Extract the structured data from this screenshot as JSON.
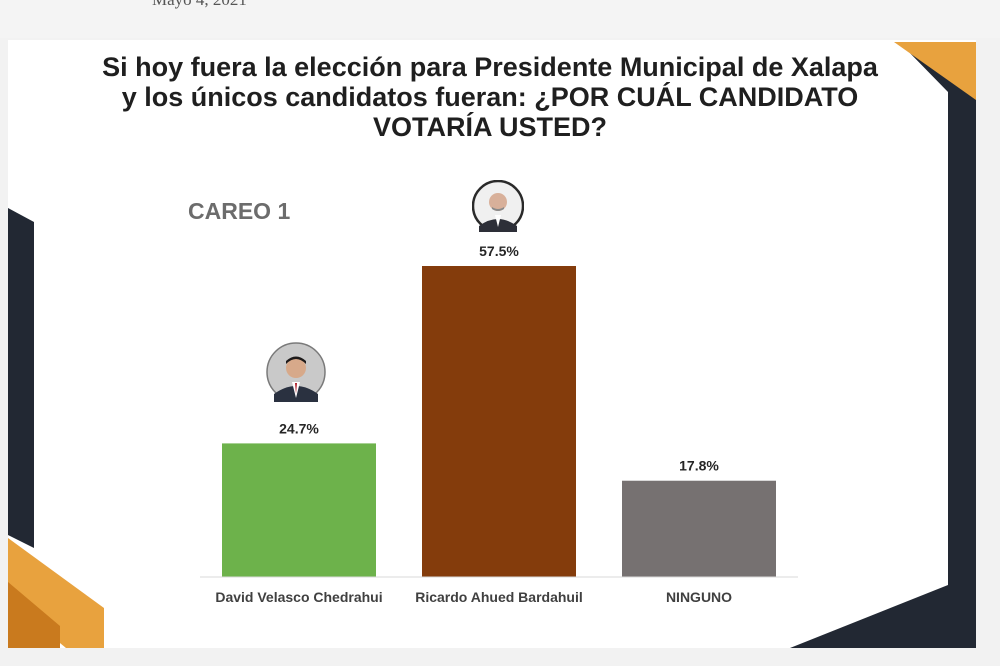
{
  "header": {
    "date_fragment": "Mayo 4, 2021"
  },
  "slide": {
    "title_lines": [
      "Si hoy fuera la elección para Presidente Municipal de Xalapa",
      "y los únicos candidatos fueran:  ¿POR CUÁL CANDIDATO",
      "VOTARÍA USTED?"
    ],
    "subtitle": "CAREO 1"
  },
  "colors": {
    "green": "#6db24b",
    "brown": "#843c0c",
    "gray": "#767171",
    "deco_dark": "#222833",
    "deco_orange": "#e8a23e",
    "deco_orange_dark": "#c97a1e"
  },
  "chart_data": {
    "type": "bar",
    "title": "Si hoy fuera la elección para Presidente Municipal de Xalapa y los únicos candidatos fueran:  ¿POR CUÁL CANDIDATO VOTARÍA USTED?",
    "subtitle": "CAREO 1",
    "categories": [
      "David Velasco Chedrahui",
      "Ricardo Ahued Bardahuil",
      "NINGUNO"
    ],
    "values": [
      24.7,
      57.5,
      17.8
    ],
    "data_labels": [
      "24.7%",
      "57.5%",
      "17.8%"
    ],
    "bar_colors": [
      "#6db24b",
      "#843c0c",
      "#767171"
    ],
    "unit": "%",
    "ylim": [
      0,
      57.5
    ],
    "grid": false,
    "legend": "none"
  }
}
